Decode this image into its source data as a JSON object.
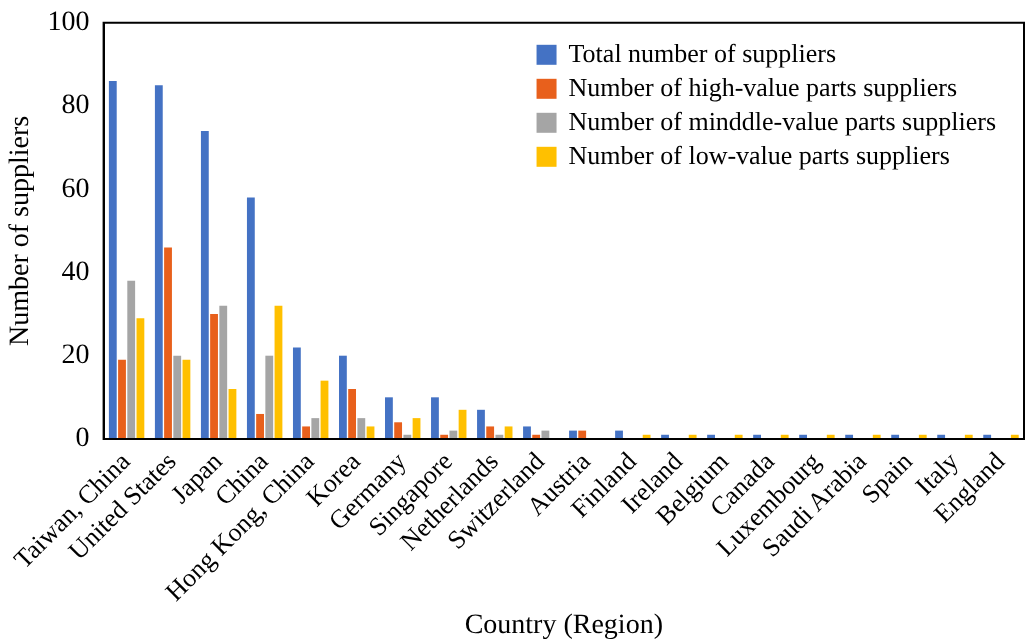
{
  "chart_data": {
    "type": "bar",
    "xlabel": "Country (Region)",
    "ylabel": "Number of suppliers",
    "categories": [
      "Taiwan, China",
      "United States",
      "Japan",
      "China",
      "Hong Kong, China",
      "Korea",
      "Germany",
      "Singapore",
      "Netherlands",
      "Switzerland",
      "Austria",
      "Finland",
      "Ireland",
      "Belgium",
      "Canada",
      "Luxembourg",
      "Saudi Arabia",
      "Spain",
      "Italy",
      "England"
    ],
    "series": [
      {
        "name": "Total number of suppliers",
        "color": "#4472c4",
        "values": [
          86,
          85,
          74,
          58,
          22,
          20,
          10,
          10,
          7,
          3,
          2,
          2,
          1,
          1,
          1,
          1,
          1,
          1,
          1,
          1
        ]
      },
      {
        "name": "Number of high-value parts suppliers",
        "color": "#e8601c",
        "values": [
          19,
          46,
          30,
          6,
          3,
          12,
          4,
          1,
          3,
          1,
          2,
          0,
          0,
          0,
          0,
          0,
          0,
          0,
          0,
          0
        ]
      },
      {
        "name": "Number of minddle-value parts suppliers",
        "color": "#a5a5a5",
        "values": [
          38,
          20,
          32,
          20,
          5,
          5,
          1,
          2,
          1,
          2,
          0,
          0,
          0,
          0,
          0,
          0,
          0,
          0,
          0,
          0
        ]
      },
      {
        "name": "Number of low-value parts suppliers",
        "color": "#ffc000",
        "values": [
          29,
          19,
          12,
          32,
          14,
          3,
          5,
          7,
          3,
          0,
          0,
          1,
          1,
          1,
          1,
          1,
          1,
          1,
          1,
          1
        ]
      }
    ],
    "ylim": [
      0,
      100
    ],
    "yticks": [
      0,
      20,
      40,
      60,
      80,
      100
    ],
    "grid": false,
    "legend": "top right"
  }
}
